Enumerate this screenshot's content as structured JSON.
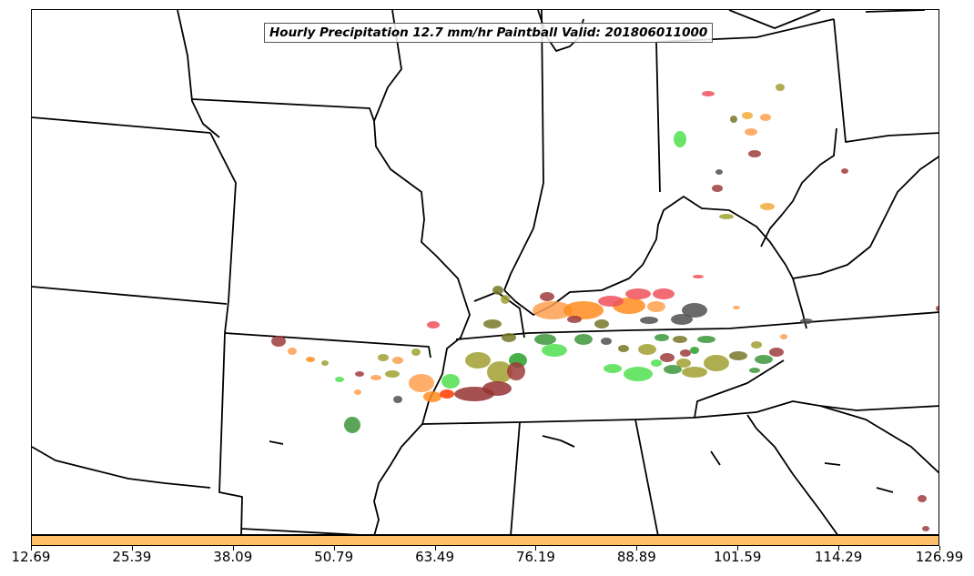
{
  "title": "Hourly Precipitation 12.7 mm/hr Paintball Valid: 201806011000",
  "colorbar": {
    "color": "#FDC068",
    "ticks": [
      "12.69",
      "25.39",
      "38.09",
      "50.79",
      "63.49",
      "76.19",
      "88.89",
      "101.59",
      "114.29",
      "126.99"
    ]
  },
  "paintball_colors": [
    "#F0505A",
    "#FF8C1E",
    "#FFA050",
    "#F5AA3C",
    "#A0A032",
    "#787828",
    "#50E050",
    "#3C963C",
    "#28A028",
    "#A03C3C",
    "#963232",
    "#505050",
    "#FF3C00"
  ]
}
